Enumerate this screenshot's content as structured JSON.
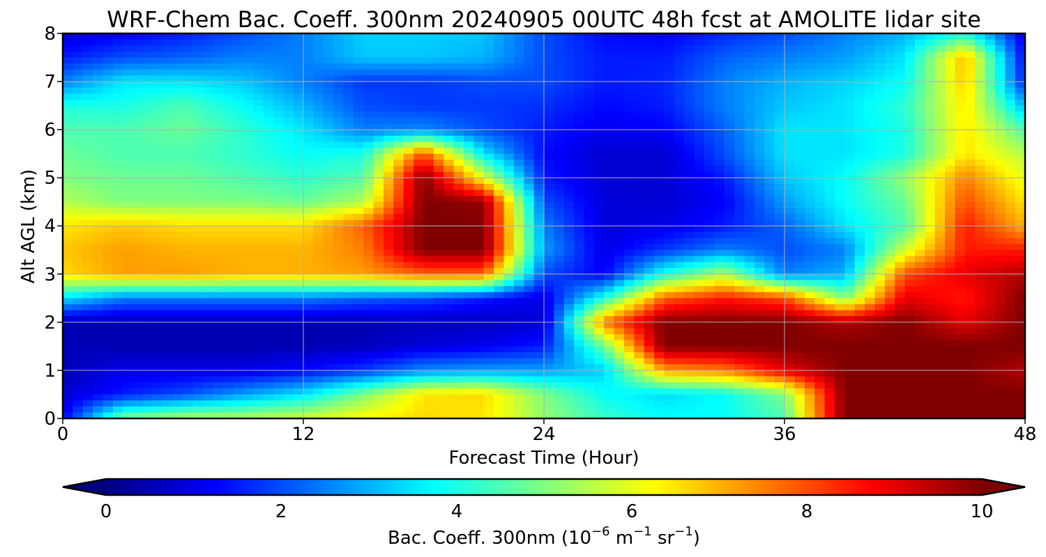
{
  "chart_data": {
    "type": "heatmap",
    "title": "WRF-Chem Bac. Coeff. 300nm  20240905 00UTC 48h fcst at AMOLITE lidar site",
    "xlabel": "Forecast Time (Hour)",
    "ylabel": "Alt AGL (km)",
    "xlim": [
      0,
      48
    ],
    "ylim": [
      0,
      8
    ],
    "xticks": [
      "0",
      "12",
      "24",
      "36",
      "48"
    ],
    "yticks": [
      "0",
      "1",
      "2",
      "3",
      "4",
      "5",
      "6",
      "7",
      "8"
    ],
    "grid": true,
    "colormap": "jet",
    "colorbar": {
      "orientation": "horizontal",
      "placement": "bottom",
      "range": [
        0,
        10
      ],
      "ticks": [
        "0",
        "2",
        "4",
        "6",
        "8",
        "10"
      ],
      "extend": "both",
      "label_main": "Bac. Coeff. 300nm  (10",
      "label_exp1": "−6",
      "label_mid1": " m",
      "label_exp2": "−1",
      "label_mid2": " sr",
      "label_exp3": "−1",
      "label_end": ")"
    },
    "time_hours": [
      0,
      3,
      6,
      9,
      12,
      15,
      18,
      21,
      24,
      27,
      30,
      33,
      36,
      39,
      42,
      45,
      48
    ],
    "altitude_km": [
      0,
      0.5,
      1,
      1.5,
      2,
      2.5,
      3,
      3.5,
      4,
      4.5,
      5,
      5.5,
      6,
      6.5,
      7,
      7.5,
      8
    ],
    "values": [
      [
        1.2,
        5.0,
        5.5,
        5.5,
        5.8,
        6.3,
        6.6,
        6.5,
        5.2,
        4.3,
        3.8,
        3.8,
        4.5,
        10,
        10,
        10,
        10
      ],
      [
        0.8,
        1.5,
        2.0,
        2.8,
        3.5,
        5.0,
        6.5,
        6.6,
        5.0,
        3.8,
        3.4,
        3.8,
        5.0,
        10,
        10,
        10,
        10
      ],
      [
        0.5,
        1.0,
        1.0,
        1.0,
        1.3,
        1.8,
        2.6,
        2.8,
        2.8,
        3.3,
        7.2,
        7.5,
        9.0,
        10,
        10,
        10,
        9.5
      ],
      [
        0.6,
        0.5,
        0.5,
        0.5,
        0.5,
        0.6,
        0.9,
        1.1,
        1.5,
        4.8,
        10,
        10,
        10,
        10,
        10,
        10,
        10
      ],
      [
        0.5,
        0.5,
        0.5,
        0.5,
        0.5,
        0.5,
        0.6,
        0.6,
        0.8,
        7.5,
        10,
        10,
        10,
        9.5,
        10,
        9.0,
        10
      ],
      [
        3.5,
        2.5,
        2.5,
        2.5,
        2.5,
        2.2,
        2.0,
        1.5,
        1.0,
        4.0,
        7.8,
        8.5,
        8.0,
        5.0,
        9.0,
        8.5,
        10
      ],
      [
        6.6,
        7.2,
        7.2,
        7.0,
        7.0,
        7.2,
        7.8,
        7.8,
        2.0,
        1.2,
        4.0,
        5.5,
        2.5,
        3.0,
        8.0,
        9.0,
        9.5
      ],
      [
        6.8,
        7.2,
        7.0,
        7.0,
        7.0,
        7.5,
        10,
        10,
        2.8,
        1.0,
        1.8,
        2.5,
        2.0,
        2.5,
        5.8,
        8.5,
        8.5
      ],
      [
        6.5,
        6.8,
        6.6,
        6.6,
        6.6,
        7.8,
        10,
        10,
        2.5,
        0.9,
        1.0,
        1.5,
        2.2,
        3.5,
        4.5,
        8.5,
        7.0
      ],
      [
        5.5,
        5.0,
        5.0,
        5.0,
        4.8,
        5.5,
        10,
        9.8,
        2.0,
        0.9,
        0.8,
        1.2,
        2.8,
        3.8,
        4.8,
        8.0,
        6.5
      ],
      [
        5.0,
        4.8,
        4.8,
        4.5,
        4.2,
        4.6,
        10,
        6.0,
        1.5,
        0.8,
        0.8,
        1.5,
        3.2,
        3.8,
        5.2,
        7.5,
        6.0
      ],
      [
        4.8,
        4.5,
        4.5,
        4.2,
        3.8,
        4.0,
        8.0,
        3.5,
        1.3,
        0.8,
        0.8,
        2.0,
        3.5,
        3.5,
        4.0,
        6.5,
        5.5
      ],
      [
        4.5,
        4.5,
        4.8,
        4.2,
        3.5,
        2.5,
        2.6,
        2.0,
        1.5,
        1.1,
        1.2,
        2.2,
        3.5,
        3.5,
        4.0,
        6.5,
        4.5
      ],
      [
        4.0,
        4.0,
        4.5,
        3.8,
        3.0,
        2.0,
        1.8,
        1.8,
        1.7,
        1.3,
        1.5,
        2.5,
        3.2,
        3.5,
        4.2,
        6.5,
        3.0
      ],
      [
        2.5,
        3.5,
        3.5,
        3.2,
        2.5,
        1.8,
        1.8,
        2.0,
        2.0,
        1.5,
        1.6,
        2.5,
        3.0,
        3.3,
        3.8,
        6.8,
        1.5
      ],
      [
        1.5,
        2.0,
        2.2,
        2.5,
        2.5,
        3.2,
        3.2,
        3.0,
        2.0,
        1.5,
        1.5,
        2.2,
        2.5,
        2.8,
        3.5,
        7.0,
        1.2
      ],
      [
        0.8,
        1.2,
        1.5,
        2.0,
        2.5,
        3.3,
        3.3,
        3.2,
        2.0,
        1.3,
        1.2,
        1.6,
        2.0,
        2.5,
        3.0,
        4.0,
        1.0
      ]
    ]
  }
}
